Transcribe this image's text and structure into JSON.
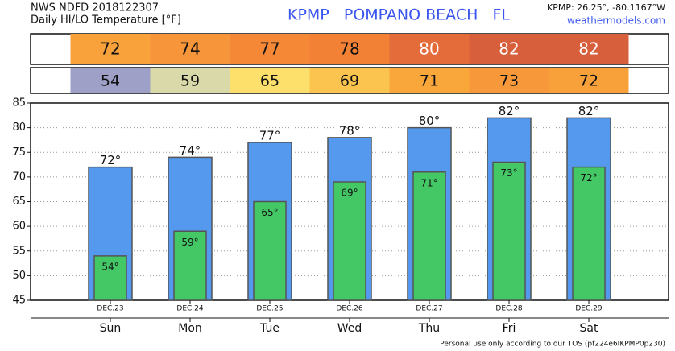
{
  "chart_data": {
    "type": "bar",
    "source": "NWS NDFD 2018122307",
    "subtitle": "Daily HI/LO Temperature [°F]",
    "title": "KPMP   POMPANO BEACH   FL",
    "location": "KPMP: 26.25°, -80.1167°W",
    "site": "weathermodels.com",
    "footer": "Personal use only according to our TOS (pf224e6IKPMP0p230)",
    "categories": [
      "Sun",
      "Mon",
      "Tue",
      "Wed",
      "Thu",
      "Fri",
      "Sat"
    ],
    "dates": [
      "DEC.23",
      "DEC.24",
      "DEC.25",
      "DEC.26",
      "DEC.27",
      "DEC.28",
      "DEC.29"
    ],
    "series": [
      {
        "name": "HI",
        "color": "#5599ee",
        "values": [
          72,
          74,
          77,
          78,
          80,
          82,
          82
        ],
        "value_labels": [
          "72°",
          "74°",
          "77°",
          "78°",
          "80°",
          "82°",
          "82°"
        ],
        "cell_colors": [
          "#f9a13b",
          "#f7953a",
          "#f58836",
          "#f28035",
          "#e46c3a",
          "#d75f3b",
          "#d75f3b"
        ],
        "label_colors": [
          "#111",
          "#111",
          "#111",
          "#111",
          "#fff",
          "#fff",
          "#fff"
        ]
      },
      {
        "name": "LO",
        "color": "#44c866",
        "values": [
          54,
          59,
          65,
          69,
          71,
          73,
          72
        ],
        "value_labels": [
          "54°",
          "59°",
          "65°",
          "69°",
          "71°",
          "73°",
          "72°"
        ],
        "cell_colors": [
          "#9ea0c8",
          "#d9d9aa",
          "#fde06b",
          "#fbc44e",
          "#f9a73b",
          "#f7993a",
          "#f8a13b"
        ],
        "label_colors": [
          "#111",
          "#111",
          "#111",
          "#111",
          "#111",
          "#111",
          "#111"
        ]
      }
    ],
    "ylim": [
      45,
      85
    ],
    "yticks": [
      45,
      50,
      55,
      60,
      65,
      70,
      75,
      80,
      85
    ],
    "grid": true
  }
}
